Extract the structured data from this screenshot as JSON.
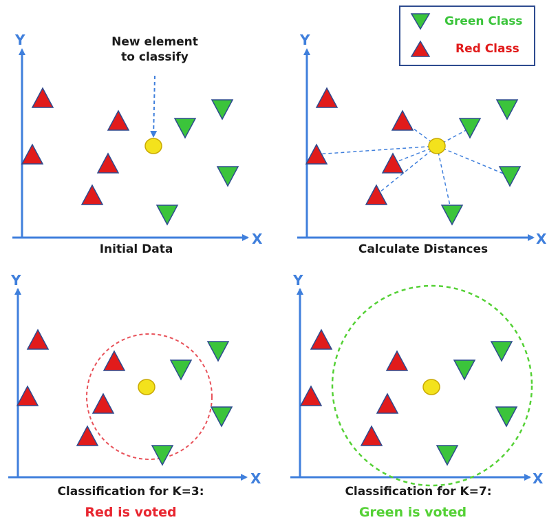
{
  "legend": {
    "green_label": "Green Class",
    "red_label": "Red Class"
  },
  "colors": {
    "green": "#3bc43b",
    "red": "#e11b1b",
    "axis": "#3f7fdc",
    "yellow": "#f3e21c",
    "vote_red": "#e8252f",
    "vote_green": "#55d136"
  },
  "axis_labels": {
    "x": "X",
    "y": "Y"
  },
  "panels": [
    {
      "id": "initial",
      "caption": "Initial Data"
    },
    {
      "id": "distances",
      "caption": "Calculate Distances"
    },
    {
      "id": "k3",
      "caption": "Classification for K=3:",
      "vote": "Red is voted"
    },
    {
      "id": "k7",
      "caption": "Classification for K=7:",
      "vote": "Green is voted"
    }
  ],
  "annotation": {
    "line1": "New element",
    "line2": "to classify"
  }
}
